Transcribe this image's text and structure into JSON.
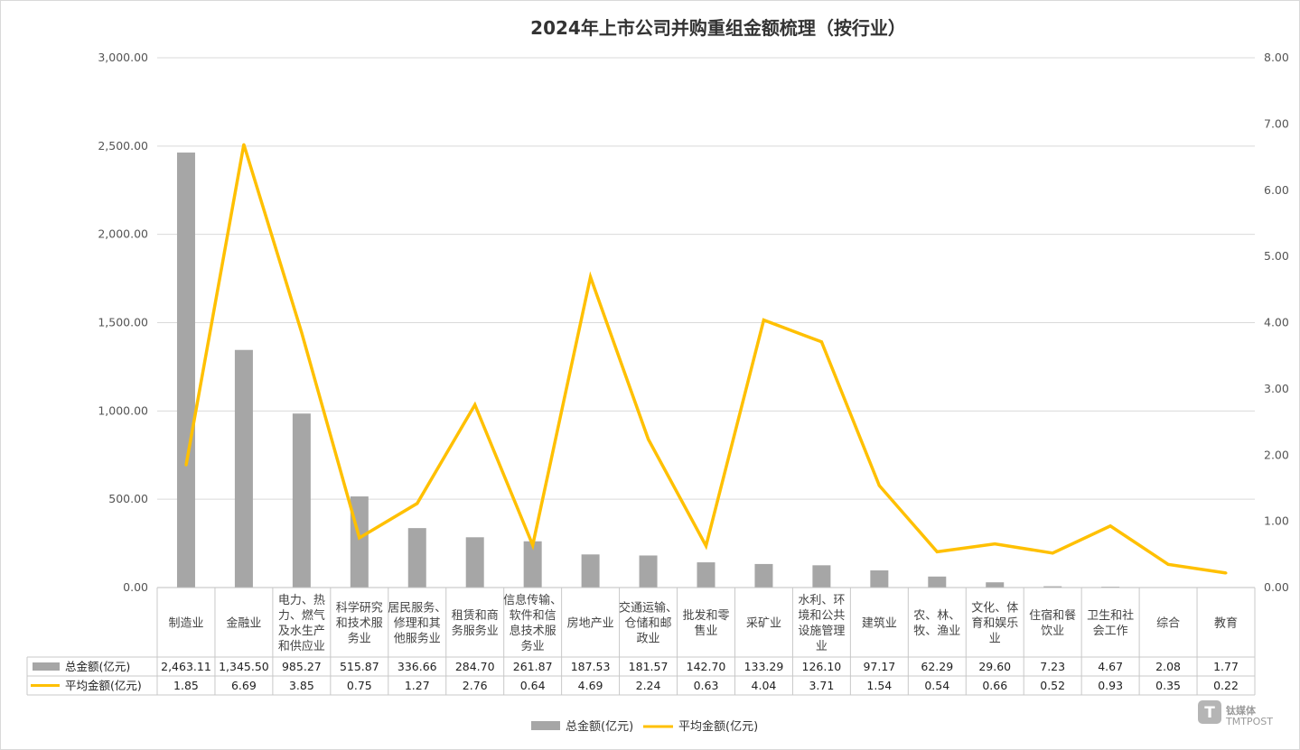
{
  "chart_data": {
    "type": "bar",
    "title": "2024年上市公司并购重组金额梳理（按行业）",
    "categories": [
      [
        "制造业"
      ],
      [
        "金融业"
      ],
      [
        "电力、热",
        "力、燃气",
        "及水生产",
        "和供应业"
      ],
      [
        "科学研究",
        "和技术服",
        "务业"
      ],
      [
        "居民服务、",
        "修理和其",
        "他服务业"
      ],
      [
        "租赁和商",
        "务服务业"
      ],
      [
        "信息传输、",
        "软件和信",
        "息技术服",
        "务业"
      ],
      [
        "房地产业"
      ],
      [
        "交通运输、",
        "仓储和邮",
        "政业"
      ],
      [
        "批发和零",
        "售业"
      ],
      [
        "采矿业"
      ],
      [
        "水利、环",
        "境和公共",
        "设施管理",
        "业"
      ],
      [
        "建筑业"
      ],
      [
        "农、林、",
        "牧、渔业"
      ],
      [
        "文化、体",
        "育和娱乐",
        "业"
      ],
      [
        "住宿和餐",
        "饮业"
      ],
      [
        "卫生和社",
        "会工作"
      ],
      [
        "综合"
      ],
      [
        "教育"
      ]
    ],
    "series": [
      {
        "name": "总金额(亿元)",
        "type": "bar",
        "axis": "left",
        "color": "#a6a6a6",
        "values": [
          2463.11,
          1345.5,
          985.27,
          515.87,
          336.66,
          284.7,
          261.87,
          187.53,
          181.57,
          142.7,
          133.29,
          126.1,
          97.17,
          62.29,
          29.6,
          7.23,
          4.67,
          2.08,
          1.77
        ],
        "labels": [
          "2,463.11",
          "1,345.50",
          "985.27",
          "515.87",
          "336.66",
          "284.70",
          "261.87",
          "187.53",
          "181.57",
          "142.70",
          "133.29",
          "126.10",
          "97.17",
          "62.29",
          "29.60",
          "7.23",
          "4.67",
          "2.08",
          "1.77"
        ]
      },
      {
        "name": "平均金额(亿元)",
        "type": "line",
        "axis": "right",
        "color": "#ffc000",
        "values": [
          1.85,
          6.69,
          3.85,
          0.75,
          1.27,
          2.76,
          0.64,
          4.69,
          2.24,
          0.63,
          4.04,
          3.71,
          1.54,
          0.54,
          0.66,
          0.52,
          0.93,
          0.35,
          0.22
        ],
        "labels": [
          "1.85",
          "6.69",
          "3.85",
          "0.75",
          "1.27",
          "2.76",
          "0.64",
          "4.69",
          "2.24",
          "0.63",
          "4.04",
          "3.71",
          "1.54",
          "0.54",
          "0.66",
          "0.52",
          "0.93",
          "0.35",
          "0.22"
        ]
      }
    ],
    "y_left": {
      "min": 0,
      "max": 3000,
      "ticks": [
        "0.00",
        "500.00",
        "1,000.00",
        "1,500.00",
        "2,000.00",
        "2,500.00",
        "3,000.00"
      ]
    },
    "y_right": {
      "min": 0,
      "max": 8,
      "ticks": [
        "0.00",
        "1.00",
        "2.00",
        "3.00",
        "4.00",
        "5.00",
        "6.00",
        "7.00",
        "8.00"
      ]
    },
    "grid": true,
    "legend_position": "bottom",
    "data_table": true
  },
  "watermark": {
    "cn": "钛媒体",
    "en": "TMTPOST",
    "glyph": "T"
  }
}
